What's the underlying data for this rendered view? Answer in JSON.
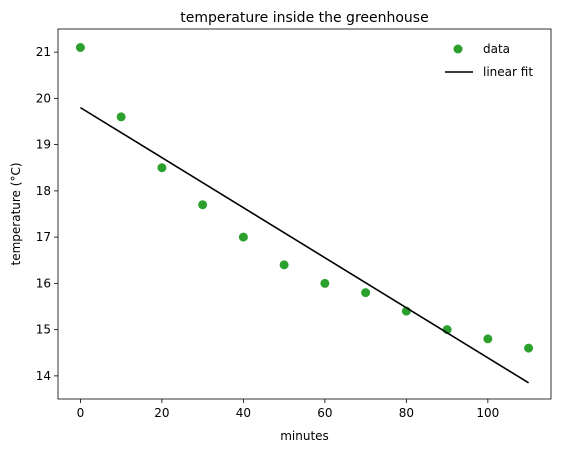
{
  "chart_data": {
    "type": "scatter",
    "title": "temperature inside the greenhouse",
    "xlabel": "minutes",
    "ylabel": "temperature (°C)",
    "xlim": [
      -5.5,
      115.5
    ],
    "ylim": [
      13.5,
      21.5
    ],
    "xticks": [
      0,
      20,
      40,
      60,
      80,
      100
    ],
    "yticks": [
      14,
      15,
      16,
      17,
      18,
      19,
      20,
      21
    ],
    "grid": false,
    "legend_position": "top-right",
    "series": [
      {
        "name": "data",
        "kind": "scatter",
        "color": "#2ca02c",
        "x": [
          0,
          10,
          20,
          30,
          40,
          50,
          60,
          70,
          80,
          90,
          100,
          110
        ],
        "y": [
          21.1,
          19.6,
          18.5,
          17.7,
          17.0,
          16.4,
          16.0,
          15.8,
          15.4,
          15.0,
          14.8,
          14.6
        ]
      },
      {
        "name": "linear fit",
        "kind": "line",
        "color": "#000000",
        "x": [
          0,
          110
        ],
        "y": [
          19.8,
          13.85
        ]
      }
    ]
  }
}
